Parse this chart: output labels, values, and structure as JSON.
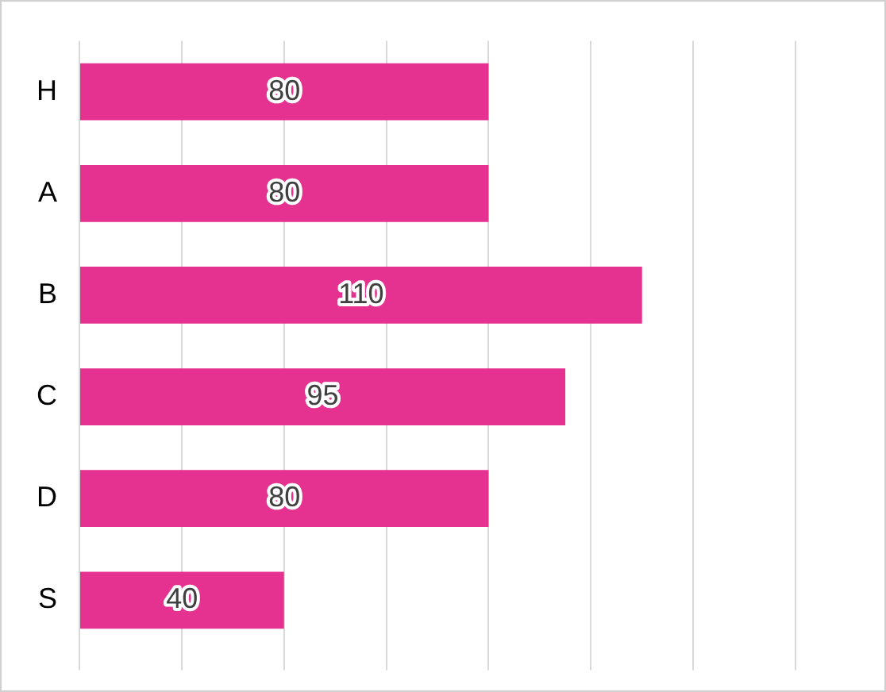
{
  "chart_data": {
    "type": "bar",
    "orientation": "horizontal",
    "categories": [
      "H",
      "A",
      "B",
      "C",
      "D",
      "S"
    ],
    "values": [
      80,
      80,
      110,
      95,
      80,
      40
    ],
    "color": "#e5318f",
    "xlim": [
      0,
      140
    ],
    "xticks": [
      {
        "value": 0,
        "label": null
      },
      {
        "value": 20,
        "label": null
      },
      {
        "value": 40,
        "label": null
      },
      {
        "value": 60,
        "label": null
      },
      {
        "value": 80,
        "label": null
      },
      {
        "value": 100,
        "label": null
      },
      {
        "value": 120,
        "label": null
      },
      {
        "value": 140,
        "label": null
      }
    ],
    "grid": "x",
    "tick_labels": "y",
    "data_labels": true,
    "legend": false
  }
}
